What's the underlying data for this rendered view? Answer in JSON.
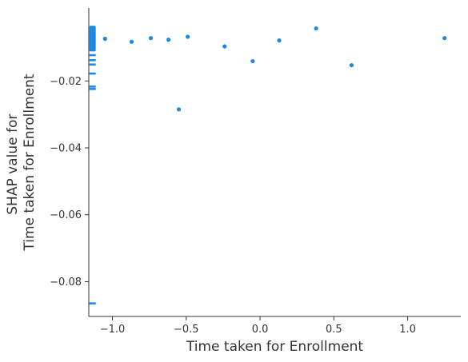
{
  "chart_data": {
    "type": "scatter",
    "title": "",
    "xlabel": "Time taken for Enrollment",
    "ylabel_lines": [
      "SHAP value for",
      "Time taken for Enrollment"
    ],
    "xlim": [
      -1.16,
      1.36
    ],
    "ylim": [
      -0.0904,
      0.0018
    ],
    "xticks": [
      -1.0,
      -0.5,
      0.0,
      0.5,
      1.0
    ],
    "xtick_labels": [
      "−1.0",
      "−0.5",
      "0.0",
      "0.5",
      "1.0"
    ],
    "yticks": [
      -0.02,
      -0.04,
      -0.06,
      -0.08
    ],
    "ytick_labels": [
      "−0.02",
      "−0.04",
      "−0.06",
      "−0.08"
    ],
    "grid": false,
    "color": "#1E88E5",
    "points": [
      {
        "x": -1.05,
        "y": -0.0074
      },
      {
        "x": -0.87,
        "y": -0.0083
      },
      {
        "x": -0.74,
        "y": -0.0072
      },
      {
        "x": -0.62,
        "y": -0.0077
      },
      {
        "x": -0.55,
        "y": -0.0285
      },
      {
        "x": -0.49,
        "y": -0.0068
      },
      {
        "x": -0.24,
        "y": -0.0097
      },
      {
        "x": -0.05,
        "y": -0.0141
      },
      {
        "x": 0.13,
        "y": -0.0079
      },
      {
        "x": 0.38,
        "y": -0.0043
      },
      {
        "x": 0.62,
        "y": -0.0153
      },
      {
        "x": 1.25,
        "y": -0.0072
      }
    ],
    "dense_cluster": {
      "x": -1.14,
      "y_band": [
        -0.0112,
        -0.0035
      ],
      "outliers_y": [
        -0.0123,
        -0.0138,
        -0.0151,
        -0.0178,
        -0.0217,
        -0.0224,
        -0.0865
      ]
    }
  }
}
